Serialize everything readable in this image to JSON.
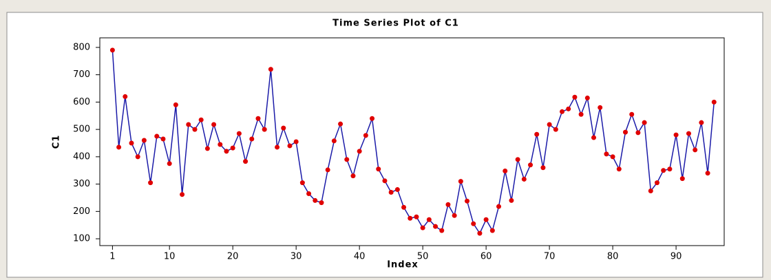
{
  "chart_data": {
    "type": "line",
    "title": "Time Series Plot of C1",
    "xlabel": "Index",
    "ylabel": "C1",
    "x": [
      1,
      2,
      3,
      4,
      5,
      6,
      7,
      8,
      9,
      10,
      11,
      12,
      13,
      14,
      15,
      16,
      17,
      18,
      19,
      20,
      21,
      22,
      23,
      24,
      25,
      26,
      27,
      28,
      29,
      30,
      31,
      32,
      33,
      34,
      35,
      36,
      37,
      38,
      39,
      40,
      41,
      42,
      43,
      44,
      45,
      46,
      47,
      48,
      49,
      50,
      51,
      52,
      53,
      54,
      55,
      56,
      57,
      58,
      59,
      60,
      61,
      62,
      63,
      64,
      65,
      66,
      67,
      68,
      69,
      70,
      71,
      72,
      73,
      74,
      75,
      76,
      77,
      78,
      79,
      80,
      81,
      82,
      83,
      84,
      85,
      86,
      87,
      88,
      89,
      90,
      91,
      92,
      93,
      94,
      95,
      96
    ],
    "series": [
      {
        "name": "C1",
        "color": "#1a1aa8",
        "marker_color": "#e00000",
        "values": [
          790,
          435,
          620,
          450,
          400,
          460,
          305,
          475,
          465,
          375,
          590,
          262,
          518,
          500,
          535,
          430,
          518,
          445,
          420,
          432,
          485,
          383,
          465,
          540,
          500,
          720,
          435,
          505,
          440,
          455,
          305,
          265,
          240,
          232,
          352,
          458,
          520,
          390,
          330,
          420,
          478,
          540,
          355,
          312,
          270,
          280,
          215,
          175,
          180,
          140,
          170,
          145,
          130,
          225,
          185,
          310,
          238,
          155,
          120,
          170,
          130,
          218,
          348,
          240,
          390,
          318,
          370,
          482,
          360,
          518,
          500,
          565,
          575,
          618,
          555,
          615,
          470,
          580,
          410,
          400,
          355,
          490,
          555,
          488,
          525,
          275,
          305,
          350,
          355,
          480,
          320,
          485,
          425,
          525,
          340,
          600
        ]
      }
    ],
    "xlim": [
      -1,
      97.6
    ],
    "ylim": [
      75,
      835
    ],
    "xticks": [
      1,
      10,
      20,
      30,
      40,
      50,
      60,
      70,
      80,
      90
    ],
    "yticks": [
      100,
      200,
      300,
      400,
      500,
      600,
      700,
      800
    ]
  }
}
